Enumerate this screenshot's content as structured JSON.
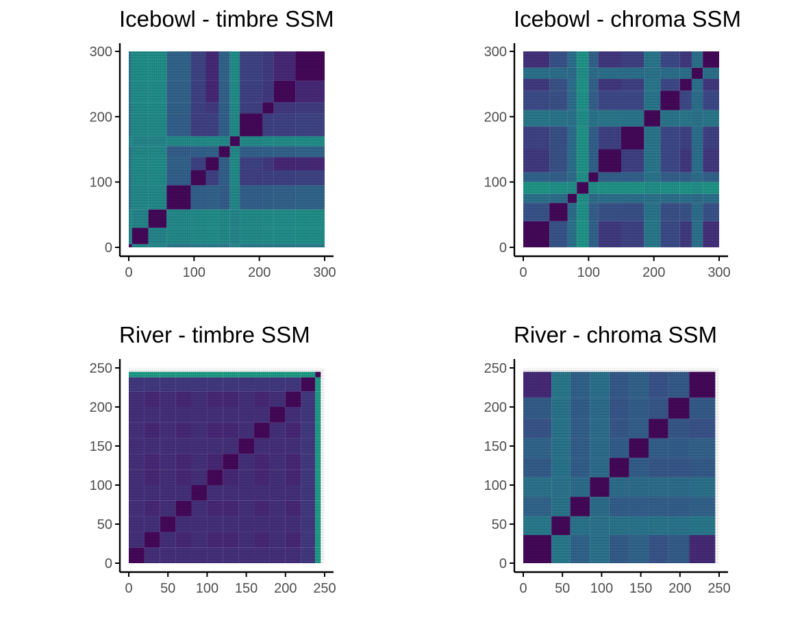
{
  "chart_data": [
    {
      "type": "heatmap",
      "title": "Icebowl - timbre SSM",
      "xlabel": "",
      "ylabel": "",
      "xlim": [
        0,
        300
      ],
      "ylim": [
        0,
        300
      ],
      "x_ticks": [
        0,
        100,
        200,
        300
      ],
      "y_ticks": [
        0,
        100,
        200,
        300
      ],
      "colormap": "viridis",
      "grid": false,
      "legend": "none",
      "segment_boundaries": [
        0,
        5,
        30,
        58,
        95,
        118,
        138,
        155,
        170,
        205,
        222,
        255,
        300
      ],
      "segment_values": [
        0.7,
        0.85,
        0.85,
        0.55,
        0.35,
        0.2,
        0.55,
        0.85,
        0.35,
        0.3,
        0.2,
        0.1
      ]
    },
    {
      "type": "heatmap",
      "title": "Icebowl - chroma SSM",
      "xlabel": "",
      "ylabel": "",
      "xlim": [
        0,
        300
      ],
      "ylim": [
        0,
        300
      ],
      "x_ticks": [
        0,
        100,
        200,
        300
      ],
      "y_ticks": [
        0,
        100,
        200,
        300
      ],
      "colormap": "viridis",
      "grid": false,
      "legend": "none",
      "segment_boundaries": [
        0,
        40,
        68,
        82,
        100,
        115,
        150,
        185,
        210,
        240,
        258,
        275,
        300
      ],
      "segment_values": [
        0.15,
        0.45,
        0.65,
        0.9,
        0.55,
        0.3,
        0.35,
        0.7,
        0.4,
        0.3,
        0.65,
        0.25
      ]
    },
    {
      "type": "heatmap",
      "title": "River - timbre SSM",
      "xlabel": "",
      "ylabel": "",
      "xlim": [
        0,
        250
      ],
      "ylim": [
        0,
        250
      ],
      "x_ticks": [
        0,
        50,
        100,
        150,
        200,
        250
      ],
      "y_ticks": [
        0,
        50,
        100,
        150,
        200,
        250
      ],
      "colormap": "viridis",
      "grid": false,
      "legend": "none",
      "segment_boundaries": [
        0,
        20,
        40,
        60,
        80,
        100,
        120,
        140,
        160,
        180,
        200,
        220,
        238,
        245
      ],
      "segment_values": [
        0.25,
        0.2,
        0.25,
        0.2,
        0.25,
        0.2,
        0.2,
        0.25,
        0.2,
        0.25,
        0.2,
        0.3,
        0.95
      ]
    },
    {
      "type": "heatmap",
      "title": "River - chroma SSM",
      "xlabel": "",
      "ylabel": "",
      "xlim": [
        0,
        250
      ],
      "ylim": [
        0,
        250
      ],
      "x_ticks": [
        0,
        50,
        100,
        150,
        200,
        250
      ],
      "y_ticks": [
        0,
        50,
        100,
        150,
        200,
        250
      ],
      "colormap": "viridis",
      "grid": false,
      "legend": "none",
      "segment_boundaries": [
        0,
        36,
        60,
        85,
        110,
        135,
        160,
        185,
        212,
        245
      ],
      "segment_values": [
        0.05,
        0.7,
        0.55,
        0.65,
        0.5,
        0.55,
        0.45,
        0.5,
        0.2
      ]
    }
  ]
}
